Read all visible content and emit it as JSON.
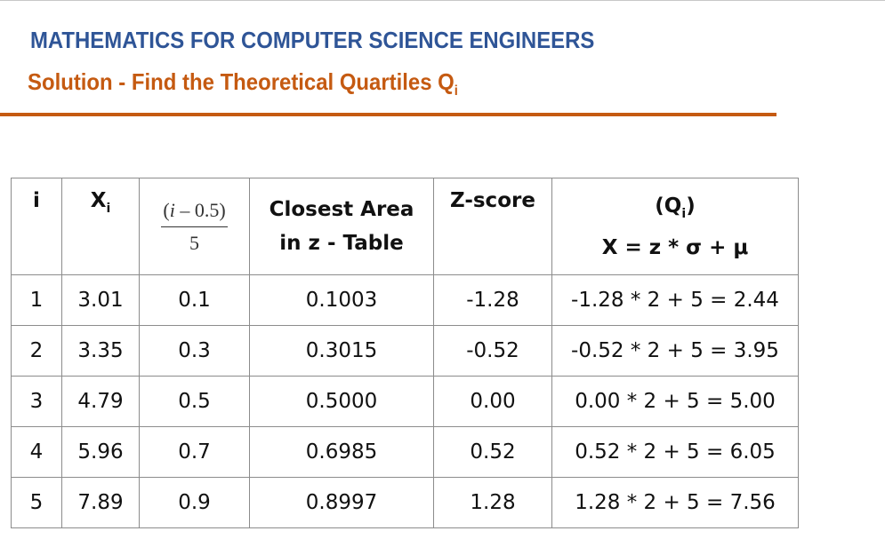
{
  "title": "MATHEMATICS FOR COMPUTER SCIENCE ENGINEERS",
  "subtitle": {
    "text": "Solution - Find the Theoretical Quartiles Q",
    "subscript": "i"
  },
  "colors": {
    "title": "#2f5597",
    "subtitle": "#c55a11",
    "rule": "#c55a11"
  },
  "table": {
    "headers": {
      "i": "i",
      "xi_main": "X",
      "xi_sub": "i",
      "fraction_numerator_var": "i",
      "fraction_numerator_rest": " – 0.5",
      "fraction_denominator": "5",
      "closest_area_line1": "Closest Area",
      "closest_area_line2": "in z - Table",
      "zscore": "Z-score",
      "qi_line1_main": "(Q",
      "qi_line1_sub": "i",
      "qi_line1_end": ")",
      "qi_line2": "X = z * σ + μ"
    },
    "rows": [
      {
        "i": "1",
        "xi": "3.01",
        "p": "0.1",
        "area": "0.1003",
        "z": "-1.28",
        "q": "-1.28 * 2 + 5 = 2.44"
      },
      {
        "i": "2",
        "xi": "3.35",
        "p": "0.3",
        "area": "0.3015",
        "z": "-0.52",
        "q": "-0.52 * 2 + 5 = 3.95"
      },
      {
        "i": "3",
        "xi": "4.79",
        "p": "0.5",
        "area": "0.5000",
        "z": "0.00",
        "q": "0.00 * 2 + 5 = 5.00"
      },
      {
        "i": "4",
        "xi": "5.96",
        "p": "0.7",
        "area": "0.6985",
        "z": "0.52",
        "q": "0.52 * 2 + 5 = 6.05"
      },
      {
        "i": "5",
        "xi": "7.89",
        "p": "0.9",
        "area": "0.8997",
        "z": "1.28",
        "q": "1.28 * 2 + 5 = 7.56"
      }
    ]
  }
}
